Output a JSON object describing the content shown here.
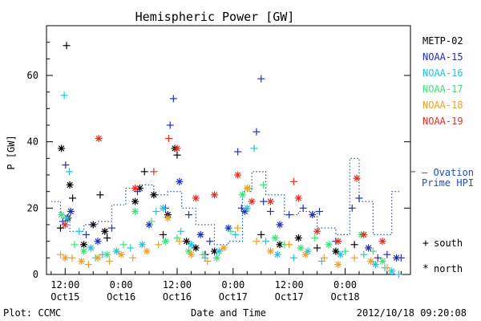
{
  "chart_data": {
    "type": "scatter",
    "title": "Hemispheric Power [GW]",
    "ylabel": "P [GW]",
    "xlabel": "Date and Time",
    "ylim": [
      0,
      75
    ],
    "yticks": [
      0,
      20,
      40,
      60
    ],
    "x_unit": "hours since 2012-10-15 00:00 UTC",
    "xlim": [
      8,
      86
    ],
    "xticks": [
      {
        "h": 12,
        "time": "12:00",
        "date": "Oct15"
      },
      {
        "h": 24,
        "time": "0:00",
        "date": "Oct16"
      },
      {
        "h": 36,
        "time": "12:00",
        "date": "Oct16"
      },
      {
        "h": 48,
        "time": "0:00",
        "date": "Oct17"
      },
      {
        "h": 60,
        "time": "12:00",
        "date": "Oct17"
      },
      {
        "h": 72,
        "time": "0:00",
        "date": "Oct18"
      }
    ],
    "series": [
      {
        "name": "METP-02",
        "color": "#000000"
      },
      {
        "name": "NOAA-15",
        "color": "#1f2fbf"
      },
      {
        "name": "NOAA-16",
        "color": "#22c4e0"
      },
      {
        "name": "NOAA-17",
        "color": "#3fe07a"
      },
      {
        "name": "NOAA-18",
        "color": "#f0a020"
      },
      {
        "name": "NOAA-19",
        "color": "#e03020"
      }
    ],
    "points": [
      [
        11.0,
        14,
        0,
        "+"
      ],
      [
        11.2,
        38,
        0,
        "*"
      ],
      [
        12.3,
        69,
        0,
        "+"
      ],
      [
        12.6,
        17,
        0,
        "*"
      ],
      [
        13.0,
        27,
        0,
        "*"
      ],
      [
        13.6,
        23,
        0,
        "+"
      ],
      [
        16.0,
        9,
        0,
        "*"
      ],
      [
        18.0,
        15,
        0,
        "*"
      ],
      [
        19.5,
        24,
        0,
        "+"
      ],
      [
        20.5,
        13,
        0,
        "*"
      ],
      [
        21.0,
        11,
        0,
        "+"
      ],
      [
        27.0,
        22,
        0,
        "*"
      ],
      [
        28.0,
        26,
        0,
        "*"
      ],
      [
        29.0,
        31,
        0,
        "+"
      ],
      [
        31.0,
        24,
        0,
        "*"
      ],
      [
        33.0,
        12,
        0,
        "+"
      ],
      [
        34.0,
        18,
        0,
        "*"
      ],
      [
        35.5,
        38,
        0,
        "*"
      ],
      [
        36.0,
        36,
        0,
        "+"
      ],
      [
        38.0,
        10,
        0,
        "*"
      ],
      [
        40.0,
        8,
        0,
        "*"
      ],
      [
        42.0,
        6,
        0,
        "+"
      ],
      [
        44.0,
        7,
        0,
        "*"
      ],
      [
        54.0,
        12,
        0,
        "+"
      ],
      [
        58.0,
        9,
        0,
        "*"
      ],
      [
        62.0,
        11,
        0,
        "*"
      ],
      [
        66.0,
        8,
        0,
        "+"
      ],
      [
        70.0,
        7,
        0,
        "*"
      ],
      [
        74.0,
        9,
        0,
        "+"
      ],
      [
        11.5,
        16,
        1,
        "+"
      ],
      [
        12.1,
        33,
        1,
        "+"
      ],
      [
        13.2,
        19,
        1,
        "*"
      ],
      [
        16.5,
        12,
        1,
        "+"
      ],
      [
        19.0,
        10,
        1,
        "*"
      ],
      [
        22.0,
        14,
        1,
        "+"
      ],
      [
        27.5,
        25,
        1,
        "+"
      ],
      [
        30.0,
        15,
        1,
        "*"
      ],
      [
        33.5,
        20,
        1,
        "+"
      ],
      [
        34.5,
        45,
        1,
        "+"
      ],
      [
        35.2,
        53,
        1,
        "+"
      ],
      [
        36.5,
        28,
        1,
        "*"
      ],
      [
        38.5,
        18,
        1,
        "+"
      ],
      [
        41.0,
        12,
        1,
        "*"
      ],
      [
        43.0,
        10,
        1,
        "+"
      ],
      [
        47.0,
        14,
        1,
        "*"
      ],
      [
        49.0,
        37,
        1,
        "+"
      ],
      [
        49.8,
        20,
        1,
        "+"
      ],
      [
        50.5,
        19,
        1,
        "*"
      ],
      [
        53.0,
        43,
        1,
        "+"
      ],
      [
        54.0,
        59,
        1,
        "+"
      ],
      [
        54.5,
        22,
        1,
        "+"
      ],
      [
        56.0,
        19,
        1,
        "+"
      ],
      [
        58.0,
        15,
        1,
        "*"
      ],
      [
        60.0,
        18,
        1,
        "+"
      ],
      [
        63.0,
        20,
        1,
        "+"
      ],
      [
        65.0,
        18,
        1,
        "*"
      ],
      [
        66.5,
        19,
        1,
        "+"
      ],
      [
        70.0,
        10,
        1,
        "+"
      ],
      [
        73.5,
        20,
        1,
        "+"
      ],
      [
        75.0,
        23,
        1,
        "+"
      ],
      [
        77.0,
        8,
        1,
        "*"
      ],
      [
        79.0,
        5,
        1,
        "+"
      ],
      [
        81.0,
        6,
        1,
        "+"
      ],
      [
        83.0,
        5,
        1,
        "*"
      ],
      [
        84.0,
        5,
        1,
        "+"
      ],
      [
        11.8,
        54,
        2,
        "+"
      ],
      [
        12.4,
        17,
        2,
        "*"
      ],
      [
        12.9,
        31,
        2,
        "+"
      ],
      [
        15.0,
        13,
        2,
        "+"
      ],
      [
        17.5,
        8,
        2,
        "*"
      ],
      [
        20.0,
        6,
        2,
        "+"
      ],
      [
        23.0,
        7,
        2,
        "*"
      ],
      [
        26.0,
        8,
        2,
        "+"
      ],
      [
        28.5,
        9,
        2,
        "*"
      ],
      [
        31.5,
        19,
        2,
        "+"
      ],
      [
        33.0,
        20,
        2,
        "*"
      ],
      [
        36.8,
        13,
        2,
        "+"
      ],
      [
        39.0,
        9,
        2,
        "*"
      ],
      [
        42.0,
        5,
        2,
        "+"
      ],
      [
        45.0,
        7,
        2,
        "*"
      ],
      [
        48.5,
        12,
        2,
        "+"
      ],
      [
        51.0,
        20,
        2,
        "*"
      ],
      [
        52.5,
        38,
        2,
        "+"
      ],
      [
        55.0,
        10,
        2,
        "+"
      ],
      [
        57.5,
        6,
        2,
        "*"
      ],
      [
        61.0,
        5,
        2,
        "+"
      ],
      [
        64.0,
        7,
        2,
        "*"
      ],
      [
        67.0,
        4,
        2,
        "+"
      ],
      [
        71.0,
        6,
        2,
        "*"
      ],
      [
        76.0,
        6,
        2,
        "+"
      ],
      [
        78.5,
        3,
        2,
        "*"
      ],
      [
        80.5,
        2,
        2,
        "+"
      ],
      [
        82.0,
        1,
        2,
        "*"
      ],
      [
        83.5,
        0,
        2,
        "+"
      ],
      [
        11.2,
        18,
        3,
        "*"
      ],
      [
        14.0,
        9,
        3,
        "+"
      ],
      [
        16.0,
        7,
        3,
        "*"
      ],
      [
        18.5,
        5,
        3,
        "+"
      ],
      [
        21.0,
        6,
        3,
        "*"
      ],
      [
        24.5,
        9,
        3,
        "+"
      ],
      [
        27.0,
        19,
        3,
        "*"
      ],
      [
        30.5,
        16,
        3,
        "+"
      ],
      [
        33.5,
        10,
        3,
        "*"
      ],
      [
        36.0,
        11,
        3,
        "+"
      ],
      [
        38.5,
        7,
        3,
        "*"
      ],
      [
        41.5,
        6,
        3,
        "+"
      ],
      [
        44.5,
        5,
        3,
        "*"
      ],
      [
        47.5,
        13,
        3,
        "+"
      ],
      [
        50.0,
        24,
        3,
        "*"
      ],
      [
        51.5,
        26,
        3,
        "+"
      ],
      [
        54.5,
        27,
        3,
        "+"
      ],
      [
        57.0,
        11,
        3,
        "*"
      ],
      [
        59.0,
        9,
        3,
        "+"
      ],
      [
        62.5,
        8,
        3,
        "*"
      ],
      [
        65.5,
        11,
        3,
        "+"
      ],
      [
        68.5,
        9,
        3,
        "*"
      ],
      [
        72.0,
        7,
        3,
        "+"
      ],
      [
        75.5,
        12,
        3,
        "*"
      ],
      [
        78.0,
        7,
        3,
        "+"
      ],
      [
        80.0,
        4,
        3,
        "*"
      ],
      [
        11.0,
        6,
        4,
        "+"
      ],
      [
        12.0,
        5,
        4,
        "*"
      ],
      [
        13.5,
        5,
        4,
        "+"
      ],
      [
        15.5,
        4,
        4,
        "*"
      ],
      [
        17.0,
        3,
        4,
        "+"
      ],
      [
        19.0,
        5,
        4,
        "*"
      ],
      [
        21.5,
        4,
        4,
        "+"
      ],
      [
        24.0,
        6,
        4,
        "*"
      ],
      [
        26.5,
        5,
        4,
        "+"
      ],
      [
        29.5,
        7,
        4,
        "*"
      ],
      [
        32.0,
        9,
        4,
        "+"
      ],
      [
        34.0,
        17,
        4,
        "*"
      ],
      [
        36.5,
        10,
        4,
        "+"
      ],
      [
        39.0,
        6,
        4,
        "*"
      ],
      [
        42.5,
        4,
        4,
        "+"
      ],
      [
        46.0,
        8,
        4,
        "*"
      ],
      [
        49.0,
        14,
        4,
        "+"
      ],
      [
        51.0,
        26,
        4,
        "*"
      ],
      [
        53.0,
        10,
        4,
        "+"
      ],
      [
        56.0,
        7,
        4,
        "*"
      ],
      [
        60.0,
        9,
        4,
        "+"
      ],
      [
        63.5,
        6,
        4,
        "*"
      ],
      [
        67.5,
        5,
        4,
        "+"
      ],
      [
        70.5,
        3,
        4,
        "*"
      ],
      [
        74.0,
        5,
        4,
        "+"
      ],
      [
        77.5,
        4,
        4,
        "*"
      ],
      [
        81.0,
        2,
        4,
        "+"
      ],
      [
        12.0,
        15,
        5,
        "*"
      ],
      [
        19.2,
        41,
        5,
        "*"
      ],
      [
        27.0,
        26,
        5,
        "*"
      ],
      [
        31.0,
        31,
        5,
        "+"
      ],
      [
        34.2,
        41,
        5,
        "+"
      ],
      [
        36.0,
        38,
        5,
        "*"
      ],
      [
        40.0,
        23,
        5,
        "*"
      ],
      [
        44.0,
        24,
        5,
        "*"
      ],
      [
        49.0,
        30,
        5,
        "*"
      ],
      [
        52.0,
        22,
        5,
        "*"
      ],
      [
        56.0,
        22,
        5,
        "*"
      ],
      [
        61.0,
        28,
        5,
        "+"
      ],
      [
        62.0,
        23,
        5,
        "*"
      ],
      [
        66.0,
        13,
        5,
        "*"
      ],
      [
        70.5,
        10,
        5,
        "*"
      ],
      [
        74.5,
        29,
        5,
        "*"
      ],
      [
        76.0,
        12,
        5,
        "*"
      ],
      [
        80.0,
        10,
        5,
        "*"
      ]
    ],
    "ovation": [
      {
        "from": 9,
        "to": 11,
        "value": 22
      },
      {
        "from": 11,
        "to": 13,
        "value": 18
      },
      {
        "from": 13,
        "to": 16,
        "value": 13
      },
      {
        "from": 16,
        "to": 19,
        "value": 15
      },
      {
        "from": 19,
        "to": 22,
        "value": 16
      },
      {
        "from": 22,
        "to": 25,
        "value": 21
      },
      {
        "from": 25,
        "to": 28,
        "value": 26
      },
      {
        "from": 28,
        "to": 31,
        "value": 27
      },
      {
        "from": 31,
        "to": 34,
        "value": 24
      },
      {
        "from": 34,
        "to": 37,
        "value": 25
      },
      {
        "from": 37,
        "to": 40,
        "value": 20
      },
      {
        "from": 40,
        "to": 44,
        "value": 15
      },
      {
        "from": 44,
        "to": 47,
        "value": 9
      },
      {
        "from": 47,
        "to": 50,
        "value": 10
      },
      {
        "from": 50,
        "to": 52,
        "value": 25
      },
      {
        "from": 52,
        "to": 55,
        "value": 31
      },
      {
        "from": 55,
        "to": 59,
        "value": 24
      },
      {
        "from": 59,
        "to": 62,
        "value": 18
      },
      {
        "from": 62,
        "to": 66,
        "value": 19
      },
      {
        "from": 66,
        "to": 70,
        "value": 14
      },
      {
        "from": 70,
        "to": 73,
        "value": 12
      },
      {
        "from": 73,
        "to": 75,
        "value": 35
      },
      {
        "from": 75,
        "to": 78,
        "value": 22
      },
      {
        "from": 78,
        "to": 82,
        "value": 12
      },
      {
        "from": 82,
        "to": 84,
        "value": 25
      }
    ],
    "ovation_label_lines": [
      "— Ovation",
      "Prime HPI"
    ],
    "marker_legend": [
      {
        "symbol": "+",
        "label": "south"
      },
      {
        "symbol": "*",
        "label": "north"
      }
    ],
    "ovation_color": "#1f4fbf"
  },
  "footer": {
    "left": "Plot: CCMC",
    "center": "Date and Time",
    "right": "2012/10/18 09:20:08"
  }
}
